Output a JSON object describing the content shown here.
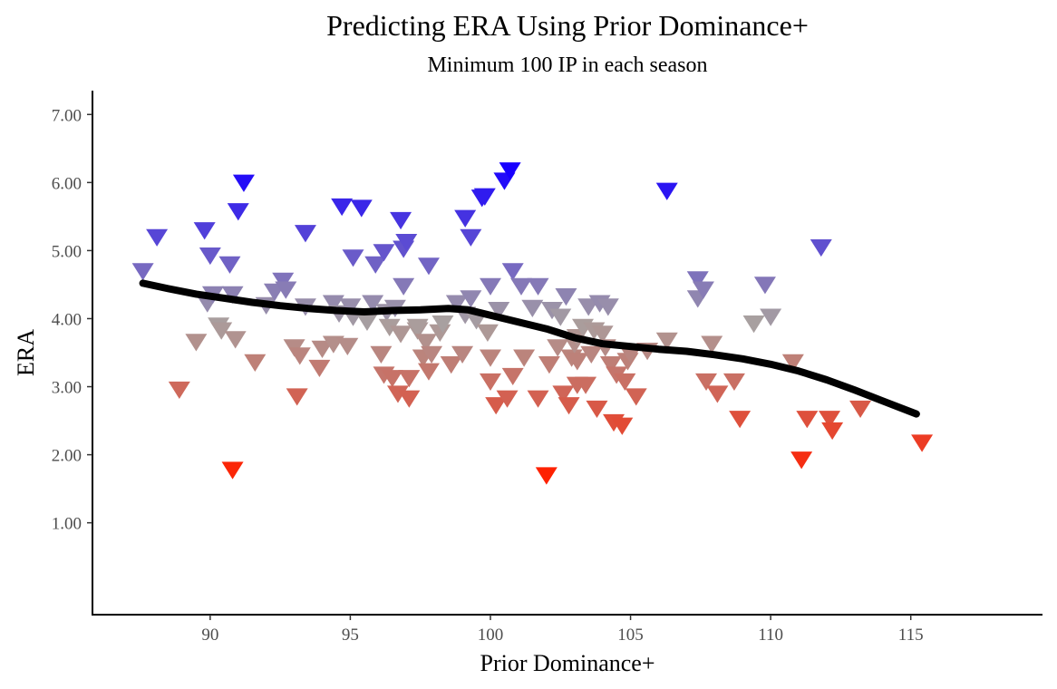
{
  "chart_data": {
    "type": "scatter",
    "title": "Predicting ERA Using Prior Dominance+",
    "subtitle": "Minimum 100 IP in each season",
    "xlabel": "Prior Dominance+",
    "ylabel": "ERA",
    "xlim": [
      85.8,
      119.7
    ],
    "ylim": [
      -0.35,
      7.35
    ],
    "x_ticks": [
      90,
      95,
      100,
      105,
      110,
      115
    ],
    "x_tick_labels": [
      "90",
      "95",
      "100",
      "105",
      "110",
      "115"
    ],
    "y_ticks": [
      1,
      2,
      3,
      4,
      5,
      6,
      7
    ],
    "y_tick_labels": [
      "1.00",
      "2.00",
      "3.00",
      "4.00",
      "5.00",
      "6.00",
      "7.00"
    ],
    "grid": false,
    "marker": "triangle-down",
    "color_scale": {
      "low_value": 1.7,
      "low_color": "#ff2000",
      "mid_value": 3.95,
      "mid_color": "#a8a0a0",
      "high_value": 6.2,
      "high_color": "#1800ff"
    },
    "points": [
      [
        87.6,
        4.72
      ],
      [
        88.1,
        5.22
      ],
      [
        88.9,
        2.98
      ],
      [
        89.5,
        3.68
      ],
      [
        89.8,
        5.32
      ],
      [
        89.9,
        4.25
      ],
      [
        90.0,
        4.95
      ],
      [
        90.1,
        4.38
      ],
      [
        90.3,
        3.92
      ],
      [
        90.4,
        3.85
      ],
      [
        90.7,
        4.82
      ],
      [
        90.8,
        4.38
      ],
      [
        90.8,
        1.8
      ],
      [
        90.9,
        3.72
      ],
      [
        91.0,
        5.6
      ],
      [
        91.2,
        6.02
      ],
      [
        91.6,
        3.38
      ],
      [
        92.0,
        4.22
      ],
      [
        92.3,
        4.42
      ],
      [
        92.6,
        4.58
      ],
      [
        92.7,
        4.45
      ],
      [
        93.0,
        3.6
      ],
      [
        93.1,
        2.88
      ],
      [
        93.2,
        3.48
      ],
      [
        93.4,
        4.2
      ],
      [
        93.4,
        5.28
      ],
      [
        93.9,
        3.3
      ],
      [
        94.0,
        3.58
      ],
      [
        94.4,
        3.65
      ],
      [
        94.4,
        4.25
      ],
      [
        94.6,
        4.1
      ],
      [
        94.7,
        5.67
      ],
      [
        94.9,
        3.62
      ],
      [
        95.0,
        4.2
      ],
      [
        95.1,
        4.05
      ],
      [
        95.1,
        4.92
      ],
      [
        95.4,
        5.65
      ],
      [
        95.6,
        3.98
      ],
      [
        95.8,
        4.25
      ],
      [
        95.9,
        4.82
      ],
      [
        96.1,
        3.5
      ],
      [
        96.2,
        3.2
      ],
      [
        96.2,
        5.0
      ],
      [
        96.3,
        4.12
      ],
      [
        96.4,
        3.9
      ],
      [
        96.5,
        3.15
      ],
      [
        96.6,
        4.18
      ],
      [
        96.7,
        2.92
      ],
      [
        96.8,
        3.8
      ],
      [
        96.8,
        5.47
      ],
      [
        96.9,
        4.5
      ],
      [
        96.9,
        5.05
      ],
      [
        97.0,
        5.15
      ],
      [
        97.1,
        2.85
      ],
      [
        97.1,
        3.15
      ],
      [
        97.4,
        3.85
      ],
      [
        97.4,
        3.9
      ],
      [
        97.6,
        3.45
      ],
      [
        97.7,
        3.68
      ],
      [
        97.8,
        4.8
      ],
      [
        97.8,
        3.25
      ],
      [
        97.9,
        3.5
      ],
      [
        98.2,
        3.82
      ],
      [
        98.3,
        3.95
      ],
      [
        98.6,
        3.35
      ],
      [
        98.8,
        4.25
      ],
      [
        99.0,
        3.5
      ],
      [
        99.1,
        5.5
      ],
      [
        99.1,
        4.08
      ],
      [
        99.3,
        5.22
      ],
      [
        99.3,
        4.32
      ],
      [
        99.5,
        4.0
      ],
      [
        99.7,
        5.8
      ],
      [
        99.8,
        5.82
      ],
      [
        99.9,
        3.82
      ],
      [
        100.0,
        4.5
      ],
      [
        100.0,
        3.45
      ],
      [
        100.0,
        3.1
      ],
      [
        100.2,
        2.75
      ],
      [
        100.3,
        4.15
      ],
      [
        100.5,
        6.05
      ],
      [
        100.6,
        2.85
      ],
      [
        100.7,
        6.2
      ],
      [
        100.8,
        4.72
      ],
      [
        100.8,
        3.18
      ],
      [
        101.1,
        4.5
      ],
      [
        101.2,
        3.45
      ],
      [
        101.5,
        4.18
      ],
      [
        101.7,
        2.85
      ],
      [
        101.7,
        4.5
      ],
      [
        102.0,
        1.72
      ],
      [
        102.1,
        3.35
      ],
      [
        102.2,
        4.15
      ],
      [
        102.4,
        3.6
      ],
      [
        102.5,
        4.05
      ],
      [
        102.6,
        2.92
      ],
      [
        102.7,
        4.35
      ],
      [
        102.8,
        2.75
      ],
      [
        102.9,
        3.45
      ],
      [
        103.0,
        3.65
      ],
      [
        103.1,
        3.75
      ],
      [
        103.1,
        3.4
      ],
      [
        103.1,
        3.05
      ],
      [
        103.3,
        3.9
      ],
      [
        103.4,
        3.05
      ],
      [
        103.5,
        4.2
      ],
      [
        103.6,
        3.5
      ],
      [
        103.7,
        3.85
      ],
      [
        103.8,
        2.7
      ],
      [
        103.9,
        4.25
      ],
      [
        104.0,
        3.8
      ],
      [
        104.1,
        3.6
      ],
      [
        104.2,
        4.2
      ],
      [
        104.3,
        3.35
      ],
      [
        104.4,
        2.5
      ],
      [
        104.5,
        3.2
      ],
      [
        104.7,
        2.45
      ],
      [
        104.8,
        3.1
      ],
      [
        104.9,
        3.4
      ],
      [
        105.0,
        3.5
      ],
      [
        105.2,
        2.88
      ],
      [
        105.6,
        3.55
      ],
      [
        106.3,
        3.7
      ],
      [
        106.3,
        5.9
      ],
      [
        107.4,
        4.6
      ],
      [
        107.4,
        4.32
      ],
      [
        107.6,
        4.45
      ],
      [
        107.7,
        3.1
      ],
      [
        107.9,
        3.65
      ],
      [
        108.1,
        2.92
      ],
      [
        108.7,
        3.1
      ],
      [
        108.9,
        2.55
      ],
      [
        109.4,
        3.95
      ],
      [
        109.8,
        4.52
      ],
      [
        110.0,
        4.05
      ],
      [
        110.8,
        3.38
      ],
      [
        111.1,
        1.95
      ],
      [
        111.3,
        2.55
      ],
      [
        111.8,
        5.07
      ],
      [
        112.1,
        2.55
      ],
      [
        112.2,
        2.38
      ],
      [
        113.2,
        2.7
      ],
      [
        115.4,
        2.2
      ]
    ],
    "trend_line": {
      "type": "loess",
      "points": [
        [
          87.6,
          4.52
        ],
        [
          88.5,
          4.44
        ],
        [
          89.5,
          4.36
        ],
        [
          90.5,
          4.3
        ],
        [
          91.5,
          4.24
        ],
        [
          92.5,
          4.19
        ],
        [
          93.5,
          4.15
        ],
        [
          94.5,
          4.12
        ],
        [
          95.5,
          4.1
        ],
        [
          96.5,
          4.12
        ],
        [
          97.5,
          4.13
        ],
        [
          98.5,
          4.15
        ],
        [
          99.2,
          4.13
        ],
        [
          100.0,
          4.05
        ],
        [
          101.0,
          3.95
        ],
        [
          102.0,
          3.85
        ],
        [
          103.0,
          3.72
        ],
        [
          104.0,
          3.63
        ],
        [
          105.0,
          3.59
        ],
        [
          106.0,
          3.55
        ],
        [
          107.0,
          3.52
        ],
        [
          108.0,
          3.47
        ],
        [
          109.0,
          3.41
        ],
        [
          110.0,
          3.33
        ],
        [
          111.0,
          3.23
        ],
        [
          112.0,
          3.1
        ],
        [
          113.0,
          2.95
        ],
        [
          114.0,
          2.79
        ],
        [
          115.2,
          2.6
        ]
      ]
    }
  }
}
